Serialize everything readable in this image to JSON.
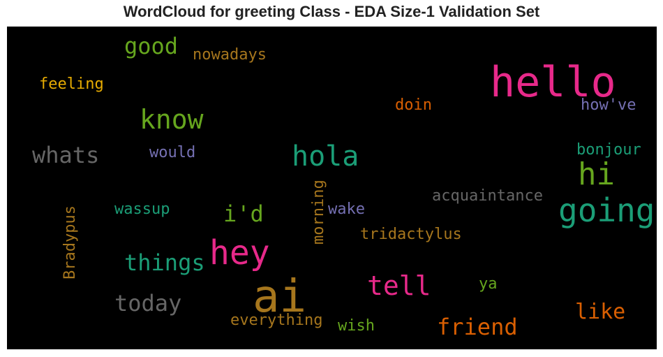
{
  "title": "WordCloud for greeting Class - EDA Size-1 Validation Set",
  "colors": {
    "pink": "#e7298a",
    "teal": "#1b9e77",
    "green": "#66a61e",
    "orange": "#d95f02",
    "brown": "#a6761d",
    "gray": "#666666",
    "purple": "#7570b3",
    "yellow": "#e6ab02"
  },
  "words": {
    "hello": "hello",
    "ai": "ai",
    "going": "going",
    "hey": "hey",
    "hi": "hi",
    "know": "know",
    "hola": "hola",
    "tell": "tell",
    "good": "good",
    "things": "things",
    "friend": "friend",
    "whats": "whats",
    "i_d": "i'd",
    "today": "today",
    "like": "like",
    "acquaintance": "acquaintance",
    "nowadays": "nowadays",
    "feeling": "feeling",
    "doin": "doin",
    "how_ve": "how've",
    "bonjour": "bonjour",
    "would": "would",
    "wassup": "wassup",
    "wake": "wake",
    "tridactylus": "tridactylus",
    "everything": "everything",
    "wish": "wish",
    "ya": "ya",
    "morning": "morning",
    "bradypus": "Bradypus"
  }
}
